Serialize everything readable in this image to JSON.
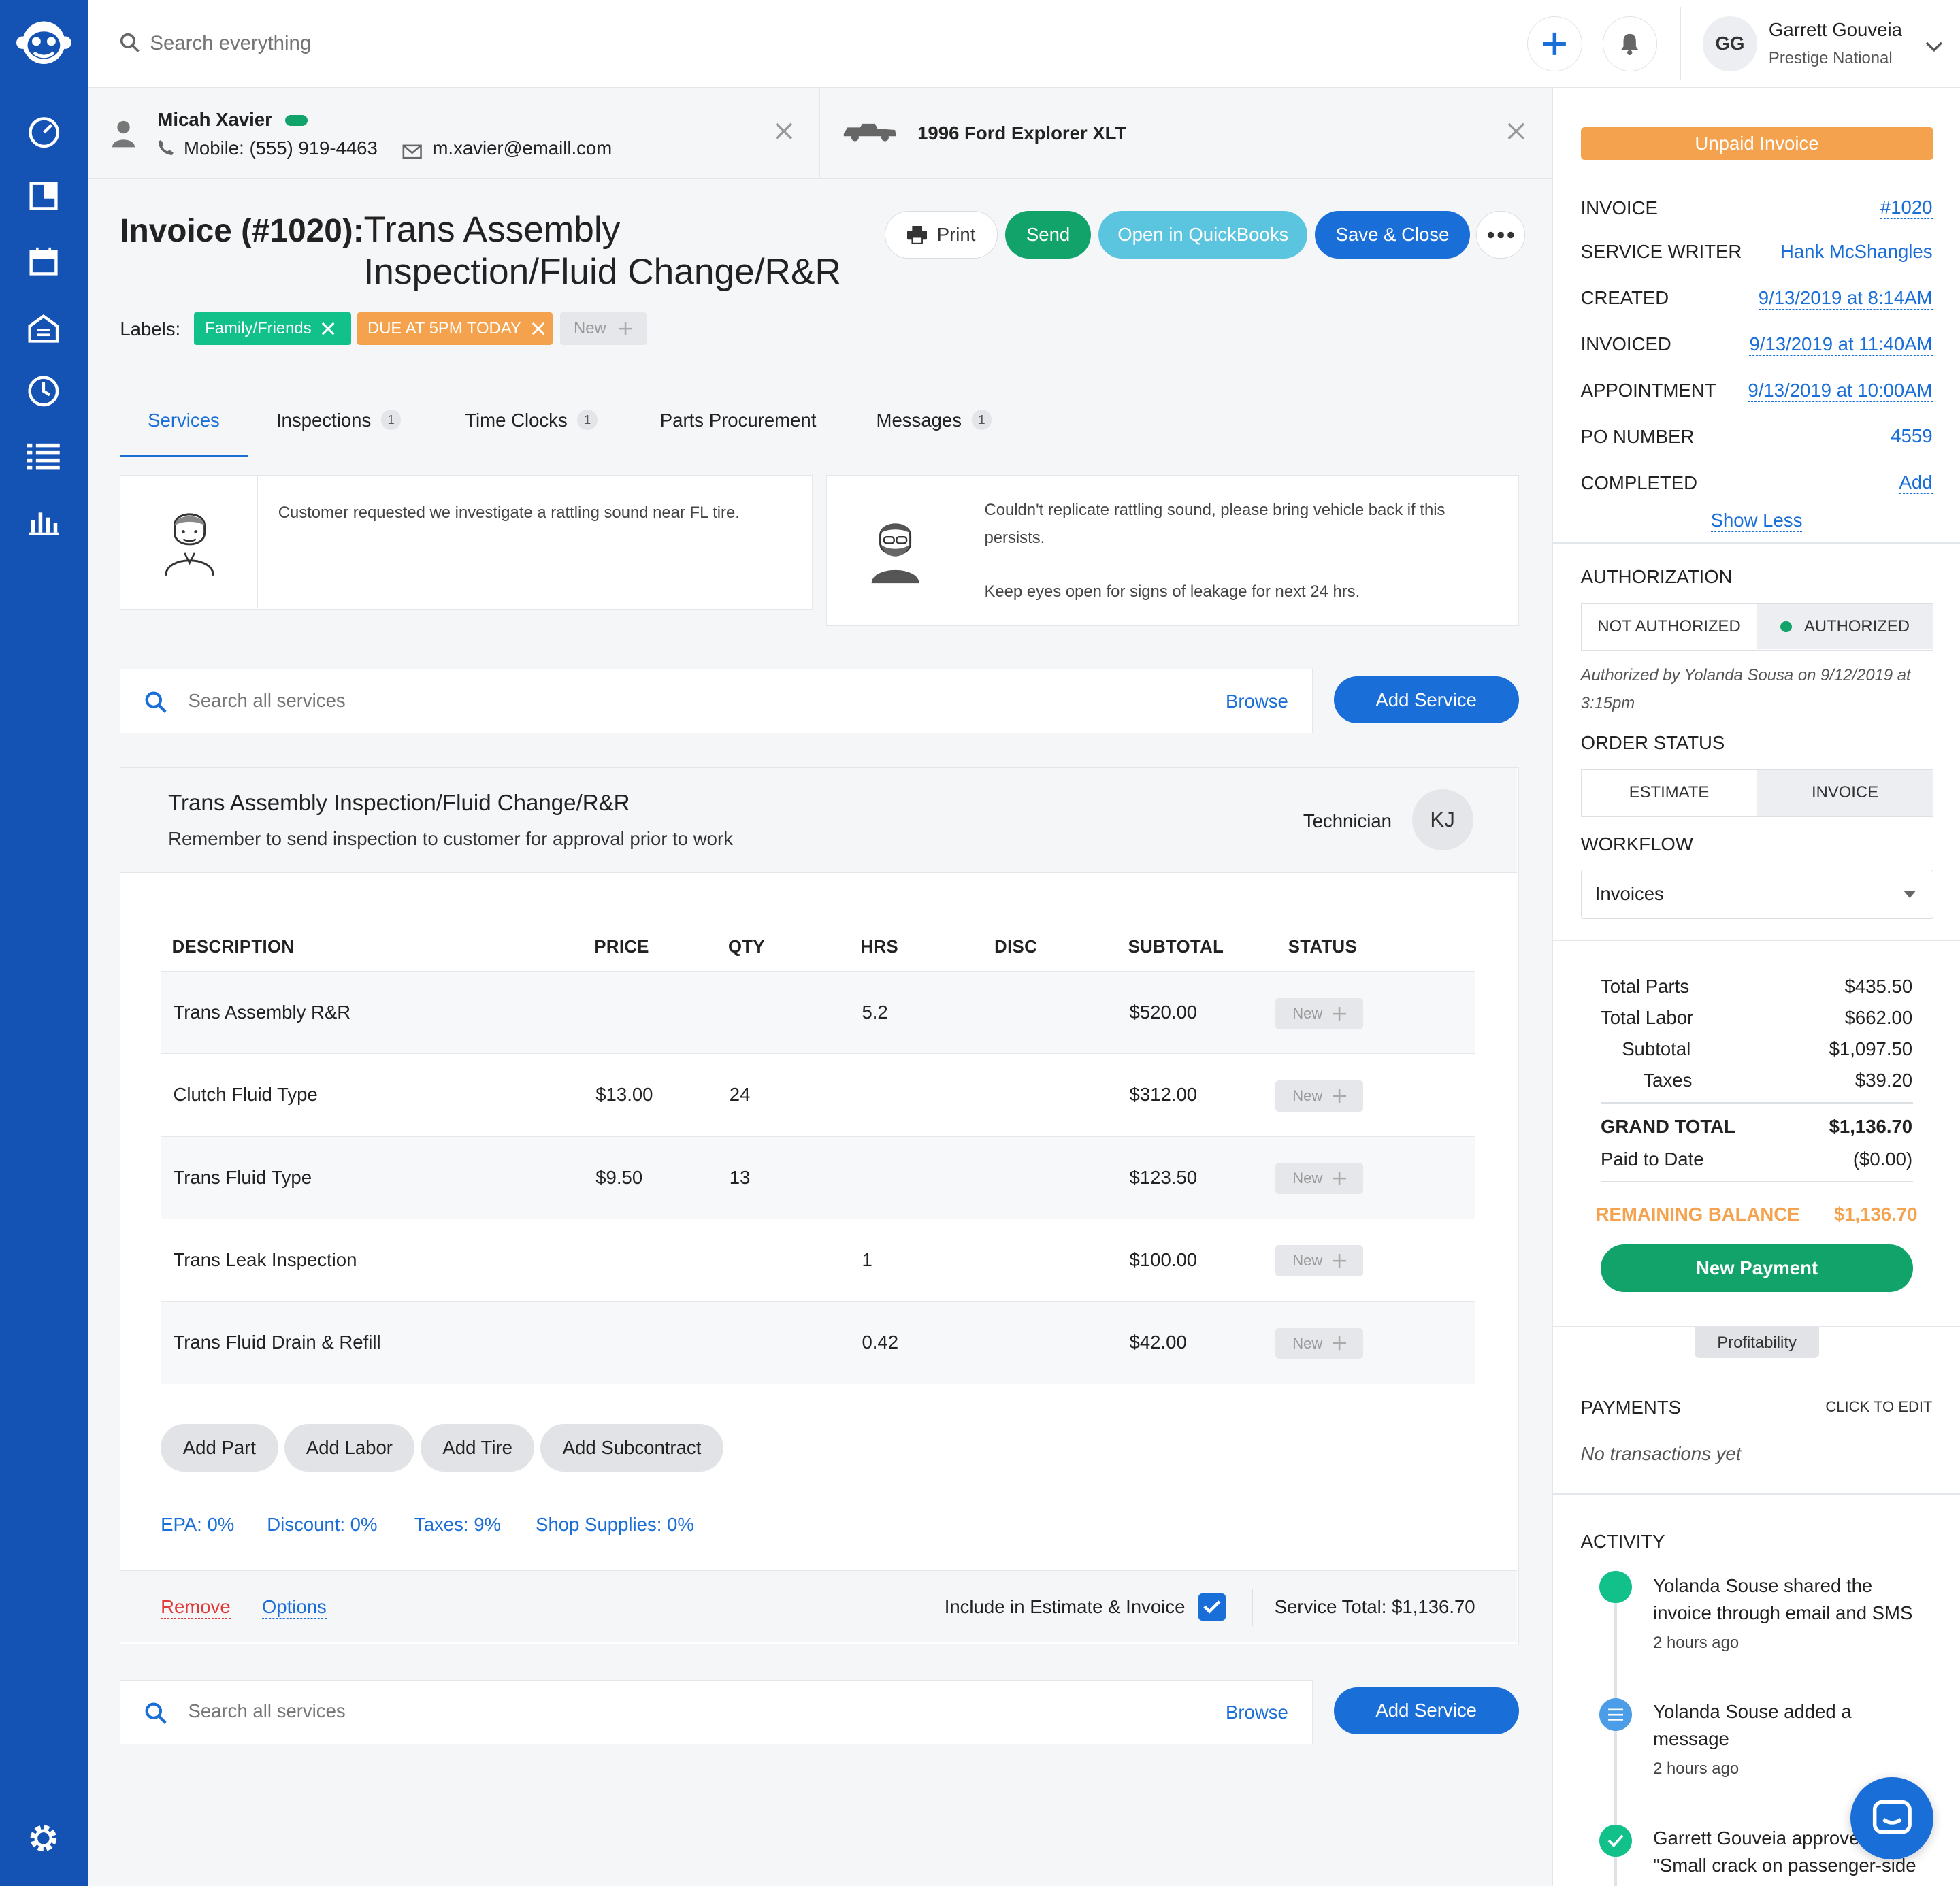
{
  "search": {
    "placeholder": "Search everything"
  },
  "user": {
    "initials": "GG",
    "name": "Garrett Gouveia",
    "company": "Prestige National"
  },
  "customer": {
    "name": "Micah Xavier",
    "phone": "Mobile: (555) 919-4463",
    "email": "m.xavier@emaill.com"
  },
  "vehicle": {
    "name": "1996 Ford Explorer XLT"
  },
  "invoice": {
    "heading": "Invoice (#1020):",
    "title_line1": "Trans Assembly",
    "title_line2": "Inspection/Fluid Change/R&R"
  },
  "actions": {
    "print": "Print",
    "send": "Send",
    "quickbooks": "Open in QuickBooks",
    "save_close": "Save & Close"
  },
  "labels": {
    "caption": "Labels:",
    "items": [
      "Family/Friends",
      "DUE AT 5PM TODAY"
    ],
    "new": "New"
  },
  "tabs": [
    {
      "label": "Services"
    },
    {
      "label": "Inspections",
      "count": "1"
    },
    {
      "label": "Time Clocks",
      "count": "1"
    },
    {
      "label": "Parts Procurement"
    },
    {
      "label": "Messages",
      "count": "1"
    }
  ],
  "notes": {
    "customer": "Customer requested we investigate a rattling sound near FL tire.",
    "tech_line1": "Couldn't replicate rattling sound, please bring vehicle back if this persists.",
    "tech_line2": "Keep eyes open for signs of leakage for next 24 hrs."
  },
  "service_search": {
    "placeholder": "Search all services",
    "browse": "Browse",
    "add": "Add Service"
  },
  "service": {
    "title": "Trans Assembly Inspection/Fluid Change/R&R",
    "subtitle": "Remember to send inspection to customer for approval prior to work",
    "technician_label": "Technician",
    "technician_initials": "KJ"
  },
  "table": {
    "headers": [
      "DESCRIPTION",
      "PRICE",
      "QTY",
      "HRS",
      "DISC",
      "SUBTOTAL",
      "STATUS"
    ],
    "rows": [
      {
        "desc": "Trans Assembly R&R",
        "price": "",
        "qty": "",
        "hrs": "5.2",
        "disc": "",
        "subtotal": "$520.00",
        "status": "New"
      },
      {
        "desc": "Clutch Fluid Type",
        "price": "$13.00",
        "qty": "24",
        "hrs": "",
        "disc": "",
        "subtotal": "$312.00",
        "status": "New"
      },
      {
        "desc": "Trans Fluid Type",
        "price": "$9.50",
        "qty": "13",
        "hrs": "",
        "disc": "",
        "subtotal": "$123.50",
        "status": "New"
      },
      {
        "desc": "Trans Leak Inspection",
        "price": "",
        "qty": "",
        "hrs": "1",
        "disc": "",
        "subtotal": "$100.00",
        "status": "New"
      },
      {
        "desc": "Trans Fluid Drain & Refill",
        "price": "",
        "qty": "",
        "hrs": "0.42",
        "disc": "",
        "subtotal": "$42.00",
        "status": "New"
      }
    ]
  },
  "add_buttons": [
    "Add Part",
    "Add Labor",
    "Add Tire",
    "Add Subcontract"
  ],
  "fees": [
    "EPA: 0%",
    "Discount: 0%",
    "Taxes: 9%",
    "Shop Supplies: 0%"
  ],
  "service_footer": {
    "remove": "Remove",
    "options": "Options",
    "include": "Include in Estimate & Invoice",
    "total": "Service Total: $1,136.70"
  },
  "right": {
    "status_banner": "Unpaid Invoice",
    "details": [
      {
        "label": "INVOICE",
        "value": "#1020"
      },
      {
        "label": "SERVICE WRITER",
        "value": "Hank McShangles"
      },
      {
        "label": "CREATED",
        "value": "9/13/2019 at 8:14AM"
      },
      {
        "label": "INVOICED",
        "value": "9/13/2019 at 11:40AM"
      },
      {
        "label": "APPOINTMENT",
        "value": "9/13/2019 at 10:00AM"
      },
      {
        "label": "PO NUMBER",
        "value": "4559"
      },
      {
        "label": "COMPLETED",
        "value": "Add"
      }
    ],
    "show_less": "Show Less",
    "authorization": {
      "title": "AUTHORIZATION",
      "not": "NOT AUTHORIZED",
      "yes": "AUTHORIZED",
      "note": "Authorized by Yolanda Sousa on 9/12/2019 at 3:15pm"
    },
    "order_status": {
      "title": "ORDER STATUS",
      "estimate": "ESTIMATE",
      "invoice": "INVOICE"
    },
    "workflow": {
      "title": "WORKFLOW",
      "value": "Invoices"
    },
    "totals": {
      "parts_label": "Total Parts",
      "parts": "$435.50",
      "labor_label": "Total Labor",
      "labor": "$662.00",
      "subtotal_label": "Subtotal",
      "subtotal": "$1,097.50",
      "taxes_label": "Taxes",
      "taxes": "$39.20",
      "grand_label": "GRAND TOTAL",
      "grand": "$1,136.70",
      "paid_label": "Paid to Date",
      "paid": "($0.00)",
      "remaining_label": "REMAINING BALANCE",
      "remaining": "$1,136.70"
    },
    "new_payment": "New Payment",
    "profitability": "Profitability",
    "payments": {
      "title": "PAYMENTS",
      "edit": "CLICK TO EDIT",
      "empty": "No transactions yet"
    },
    "activity": {
      "title": "ACTIVITY",
      "items": [
        {
          "text": "Yolanda Souse shared the invoice through email and SMS",
          "time": "2 hours ago"
        },
        {
          "text": "Yolanda Souse added a message",
          "time": "2 hours ago"
        },
        {
          "text": "Garrett Gouveia approved \"Small crack on passenger-side",
          "time": ""
        }
      ]
    }
  },
  "colors": {
    "sidebar": "#1452b3",
    "accent": "#1a6ed8",
    "green": "#12a36b",
    "teal": "#5bc4de",
    "orange": "#f4a24d"
  }
}
